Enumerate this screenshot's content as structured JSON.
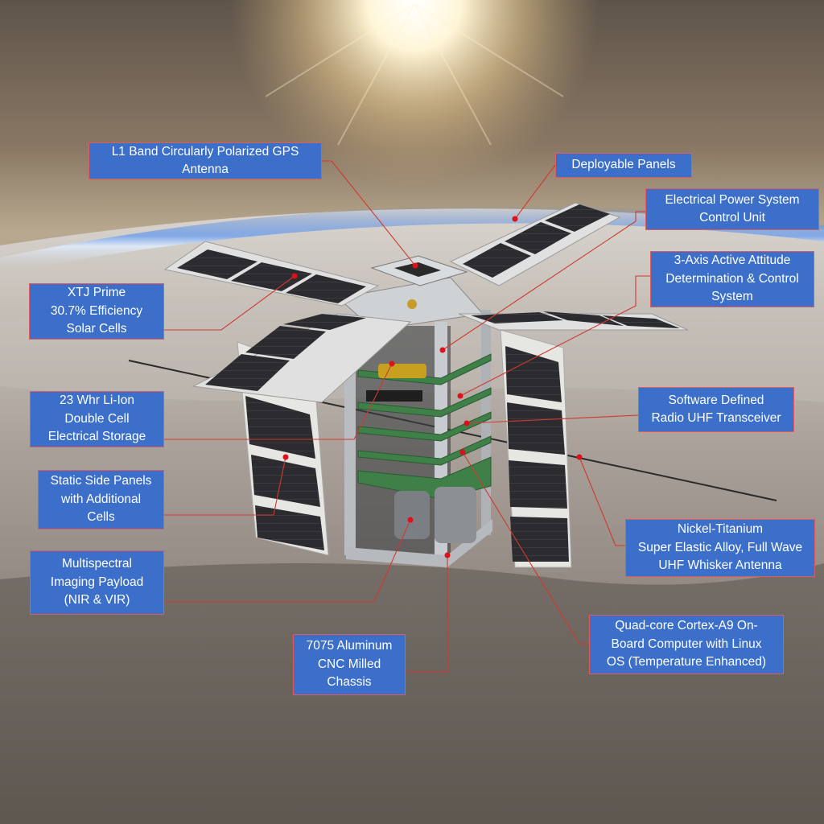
{
  "diagram": {
    "subject": "CubeSat"
  },
  "callouts": {
    "gps_antenna": "L1 Band Circularly Polarized GPS\nAntenna",
    "deployable_panels": "Deployable Panels",
    "eps_control": "Electrical Power System\nControl Unit",
    "adcs": "3-Axis Active Attitude\nDetermination &  Control\nSystem",
    "solar_cells": "XTJ Prime\n30.7%  Efficiency\nSolar Cells",
    "battery": "23 Whr Li-Ion\nDouble Cell\nElectrical Storage",
    "sdr": "Software Defined\nRadio UHF Transceiver",
    "static_panels": "Static Side Panels\nwith Additional\nCells",
    "payload": "Multispectral\nImaging Payload\n(NIR & VIR)",
    "whisker_antenna": "Nickel-Titanium\nSuper Elastic Alloy, Full Wave\nUHF Whisker Antenna",
    "obc": "Quad-core Cortex-A9 On-\nBoard Computer with Linux\nOS (Temperature Enhanced)",
    "chassis": "7075 Aluminum\nCNC Milled\nChassis"
  },
  "colors": {
    "label_fill": "#3b6fc9",
    "label_border": "#e35a5a",
    "leader_line": "#d0392f",
    "solar_cell": "#2b2b2e",
    "panel_frame": "#e4e4e2",
    "pcb": "#3e7d4a"
  }
}
